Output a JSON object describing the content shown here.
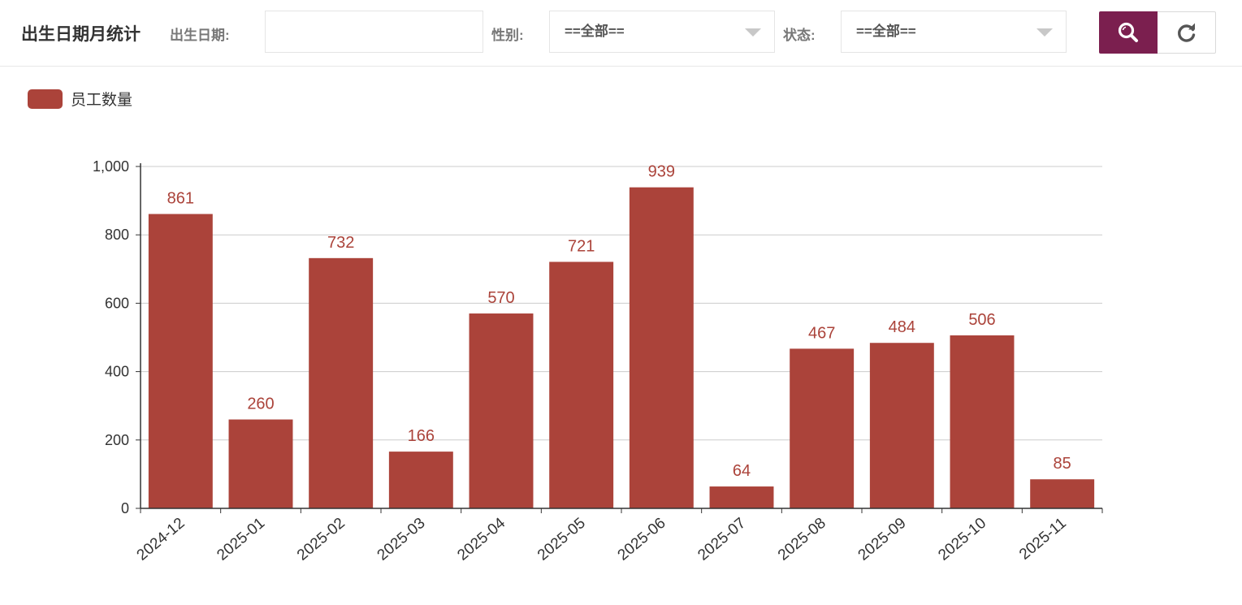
{
  "header": {
    "title": "出生日期月统计",
    "birth_date_label": "出生日期:",
    "birth_date_value": "",
    "gender_label": "性别:",
    "gender_value": "==全部==",
    "status_label": "状态:",
    "status_value": "==全部=="
  },
  "buttons": {
    "search_icon": "search-icon",
    "reset_icon": "refresh-icon",
    "search_color": "#7b1f4f"
  },
  "chart_data": {
    "type": "bar",
    "categories": [
      "2024-12",
      "2025-01",
      "2025-02",
      "2025-03",
      "2025-04",
      "2025-05",
      "2025-06",
      "2025-07",
      "2025-08",
      "2025-09",
      "2025-10",
      "2025-11"
    ],
    "series": [
      {
        "name": "员工数量",
        "color": "#ab433a",
        "values": [
          861,
          260,
          732,
          166,
          570,
          721,
          939,
          64,
          467,
          484,
          506,
          85
        ]
      }
    ],
    "yticks": [
      "0",
      "200",
      "400",
      "600",
      "800",
      "1,000"
    ],
    "ylim": [
      0,
      1000
    ],
    "grid": true,
    "legend": "top-left",
    "data_labels": true
  }
}
